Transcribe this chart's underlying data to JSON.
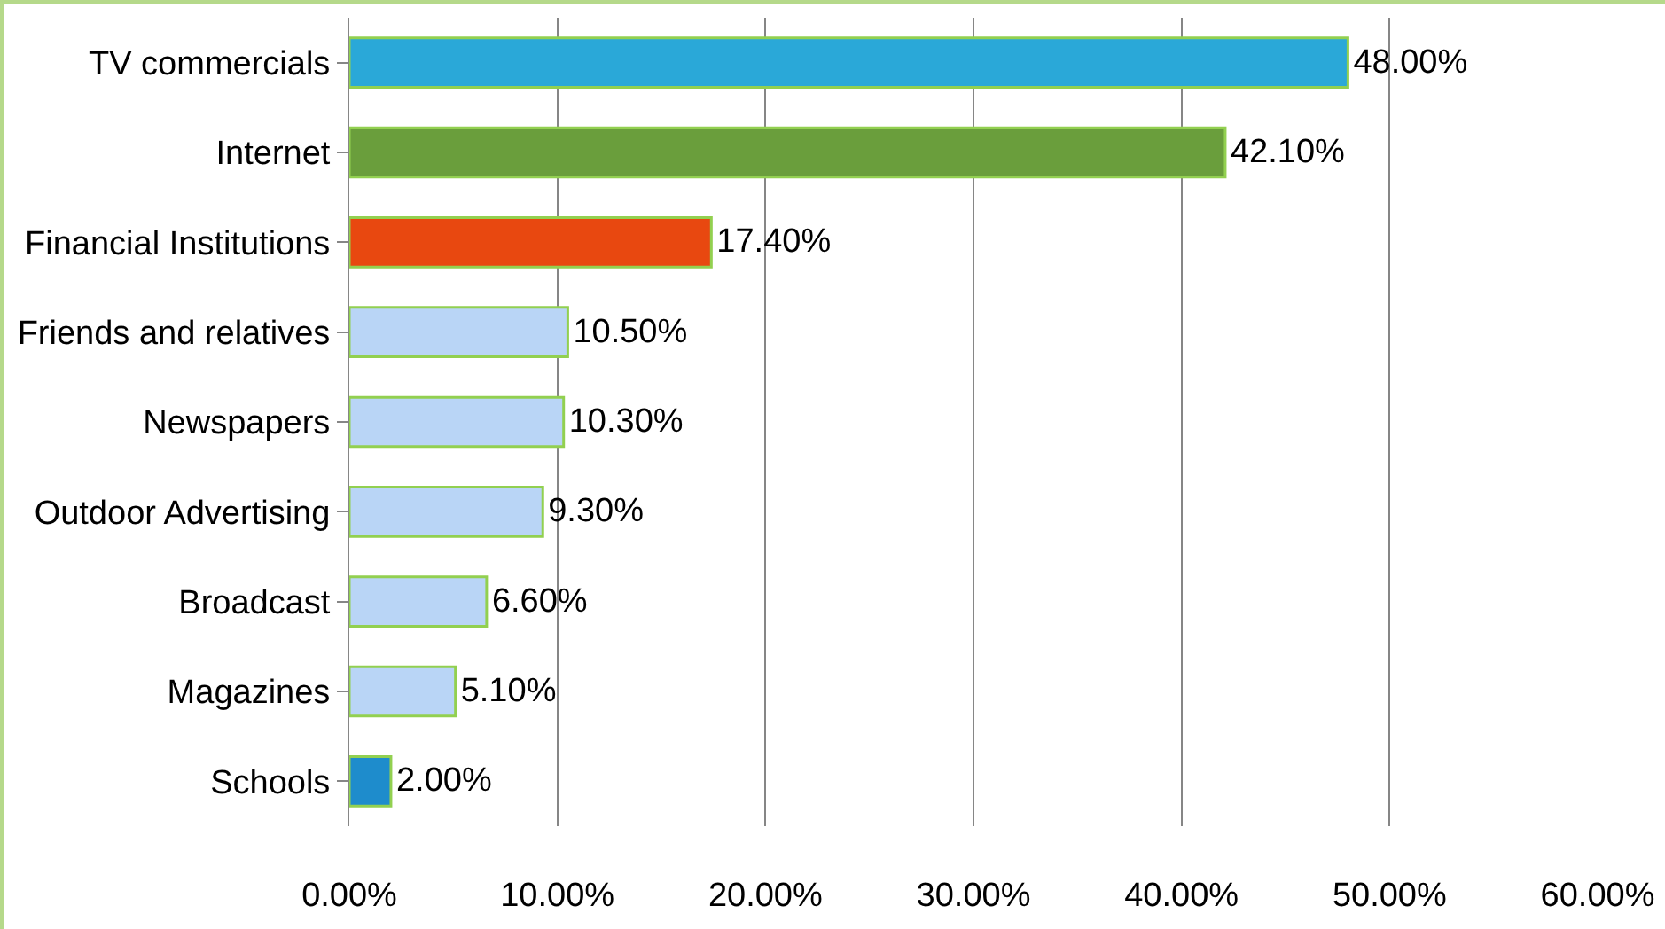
{
  "chart_data": {
    "type": "bar",
    "orientation": "horizontal",
    "categories": [
      "TV commercials",
      "Internet",
      "Financial Institutions",
      "Friends and relatives",
      "Newspapers",
      "Outdoor Advertising",
      "Broadcast",
      "Magazines",
      "Schools"
    ],
    "values": [
      48.0,
      42.1,
      17.4,
      10.5,
      10.3,
      9.3,
      6.6,
      5.1,
      2.0
    ],
    "colors": [
      "#2aa8d8",
      "#6a9e3c",
      "#e84810",
      "#b9d5f6",
      "#b9d5f6",
      "#b9d5f6",
      "#b9d5f6",
      "#b9d5f6",
      "#1e8ccc"
    ],
    "value_labels": [
      "48.00%",
      "42.10%",
      "17.40%",
      "10.50%",
      "10.30%",
      "9.30%",
      "6.60%",
      "5.10%",
      "2.00%"
    ],
    "xlim": [
      0,
      60
    ],
    "xticks": [
      {
        "value": 0,
        "label": "0.00%"
      },
      {
        "value": 10,
        "label": "10.00%"
      },
      {
        "value": 20,
        "label": "20.00%"
      },
      {
        "value": 30,
        "label": "30.00%"
      },
      {
        "value": 40,
        "label": "40.00%"
      },
      {
        "value": 50,
        "label": "50.00%"
      },
      {
        "value": 60,
        "label": "60.00%"
      }
    ],
    "grid": "x",
    "legend": false
  }
}
